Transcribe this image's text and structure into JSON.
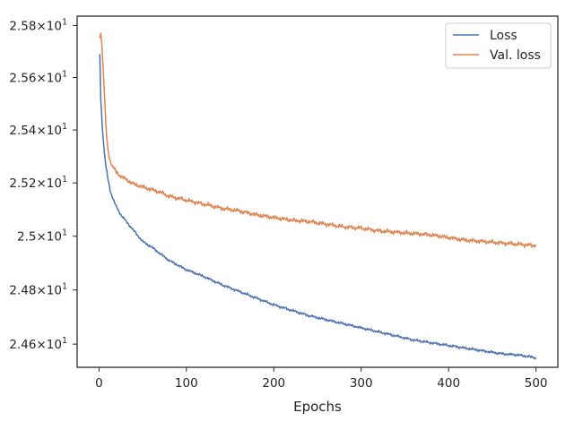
{
  "chart_data": {
    "type": "line",
    "title": "",
    "xlabel": "Epochs",
    "ylabel": "",
    "xlim": [
      -25,
      525
    ],
    "ylim": [
      24.515,
      25.836
    ],
    "y_scale": "log",
    "grid": false,
    "legend_position": "top-right",
    "x_ticks": [
      {
        "value": 0,
        "label": "0"
      },
      {
        "value": 100,
        "label": "100"
      },
      {
        "value": 200,
        "label": "200"
      },
      {
        "value": 300,
        "label": "300"
      },
      {
        "value": 400,
        "label": "400"
      },
      {
        "value": 500,
        "label": "500"
      }
    ],
    "y_ticks": [
      {
        "value": 24.6,
        "mantissa": "2.46",
        "base": "10",
        "exp": "1"
      },
      {
        "value": 24.8,
        "mantissa": "2.48",
        "base": "10",
        "exp": "1"
      },
      {
        "value": 25.0,
        "mantissa": "2.5",
        "base": "10",
        "exp": "1"
      },
      {
        "value": 25.2,
        "mantissa": "2.52",
        "base": "10",
        "exp": "1"
      },
      {
        "value": 25.4,
        "mantissa": "2.54",
        "base": "10",
        "exp": "1"
      },
      {
        "value": 25.6,
        "mantissa": "2.56",
        "base": "10",
        "exp": "1"
      },
      {
        "value": 25.8,
        "mantissa": "2.58",
        "base": "10",
        "exp": "1"
      }
    ],
    "series": [
      {
        "name": "Loss",
        "color": "#4c72b0",
        "x": [
          1,
          2,
          4,
          6,
          8,
          10,
          13,
          16,
          20,
          25,
          30,
          40,
          50,
          60,
          70,
          80,
          100,
          120,
          140,
          160,
          180,
          200,
          220,
          240,
          260,
          280,
          300,
          320,
          340,
          360,
          380,
          400,
          420,
          440,
          460,
          480,
          500
        ],
        "y": [
          25.69,
          25.52,
          25.4,
          25.32,
          25.26,
          25.22,
          25.17,
          25.14,
          25.11,
          25.08,
          25.06,
          25.02,
          24.98,
          24.96,
          24.935,
          24.91,
          24.875,
          24.85,
          24.82,
          24.795,
          24.77,
          24.745,
          24.725,
          24.705,
          24.69,
          24.675,
          24.66,
          24.645,
          24.63,
          24.615,
          24.605,
          24.595,
          24.585,
          24.575,
          24.565,
          24.56,
          24.55
        ]
      },
      {
        "name": "Val. loss",
        "color": "#dd8452",
        "x": [
          1,
          2,
          3,
          4,
          5,
          6,
          8,
          10,
          13,
          16,
          20,
          25,
          30,
          40,
          50,
          60,
          70,
          80,
          100,
          120,
          140,
          160,
          180,
          200,
          220,
          240,
          260,
          280,
          300,
          320,
          340,
          360,
          380,
          400,
          420,
          440,
          460,
          480,
          500
        ],
        "y": [
          25.75,
          25.77,
          25.74,
          25.68,
          25.62,
          25.55,
          25.41,
          25.33,
          25.28,
          25.26,
          25.24,
          25.225,
          25.215,
          25.195,
          25.185,
          25.175,
          25.165,
          25.15,
          25.135,
          25.12,
          25.105,
          25.095,
          25.08,
          25.07,
          25.06,
          25.055,
          25.045,
          25.035,
          25.03,
          25.02,
          25.015,
          25.01,
          25.005,
          24.995,
          24.985,
          24.98,
          24.975,
          24.97,
          24.965
        ]
      }
    ]
  }
}
